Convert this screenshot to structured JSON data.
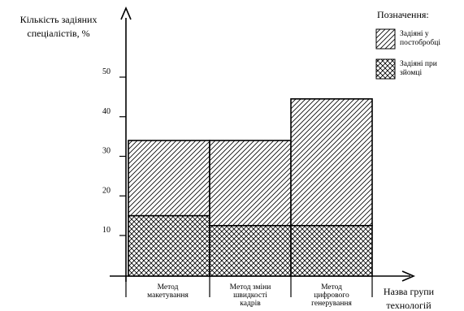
{
  "chart_data": {
    "type": "bar",
    "stacked": true,
    "ylabel_lines": [
      "Кількість задіяних",
      "спеціалістів, %"
    ],
    "xlabel_lines": [
      "Назва групи",
      "технологій"
    ],
    "yticks": [
      10,
      20,
      30,
      40,
      50
    ],
    "ylim": [
      0,
      55
    ],
    "categories": [
      [
        "Метод",
        "макетування"
      ],
      [
        "Метод зміни",
        "швидкості",
        "кадрів"
      ],
      [
        "Метод",
        "цифрового",
        "генерування"
      ]
    ],
    "series": [
      {
        "name": "Задіяні при зйомці",
        "pattern": "crosshatch",
        "values": [
          15,
          12.5,
          12.5
        ]
      },
      {
        "name": "Задіяні у постобробці",
        "pattern": "diagonal",
        "values": [
          19,
          21.5,
          32
        ]
      }
    ],
    "legend": {
      "title": "Позначення:",
      "placement": "top-right",
      "items": [
        {
          "series": 1,
          "lines": [
            "Задіяні у",
            "постобробці"
          ]
        },
        {
          "series": 0,
          "lines": [
            "Задіяні при",
            "зйомці"
          ]
        }
      ]
    },
    "colors": {
      "stroke": "#000000",
      "background": "#ffffff"
    }
  }
}
